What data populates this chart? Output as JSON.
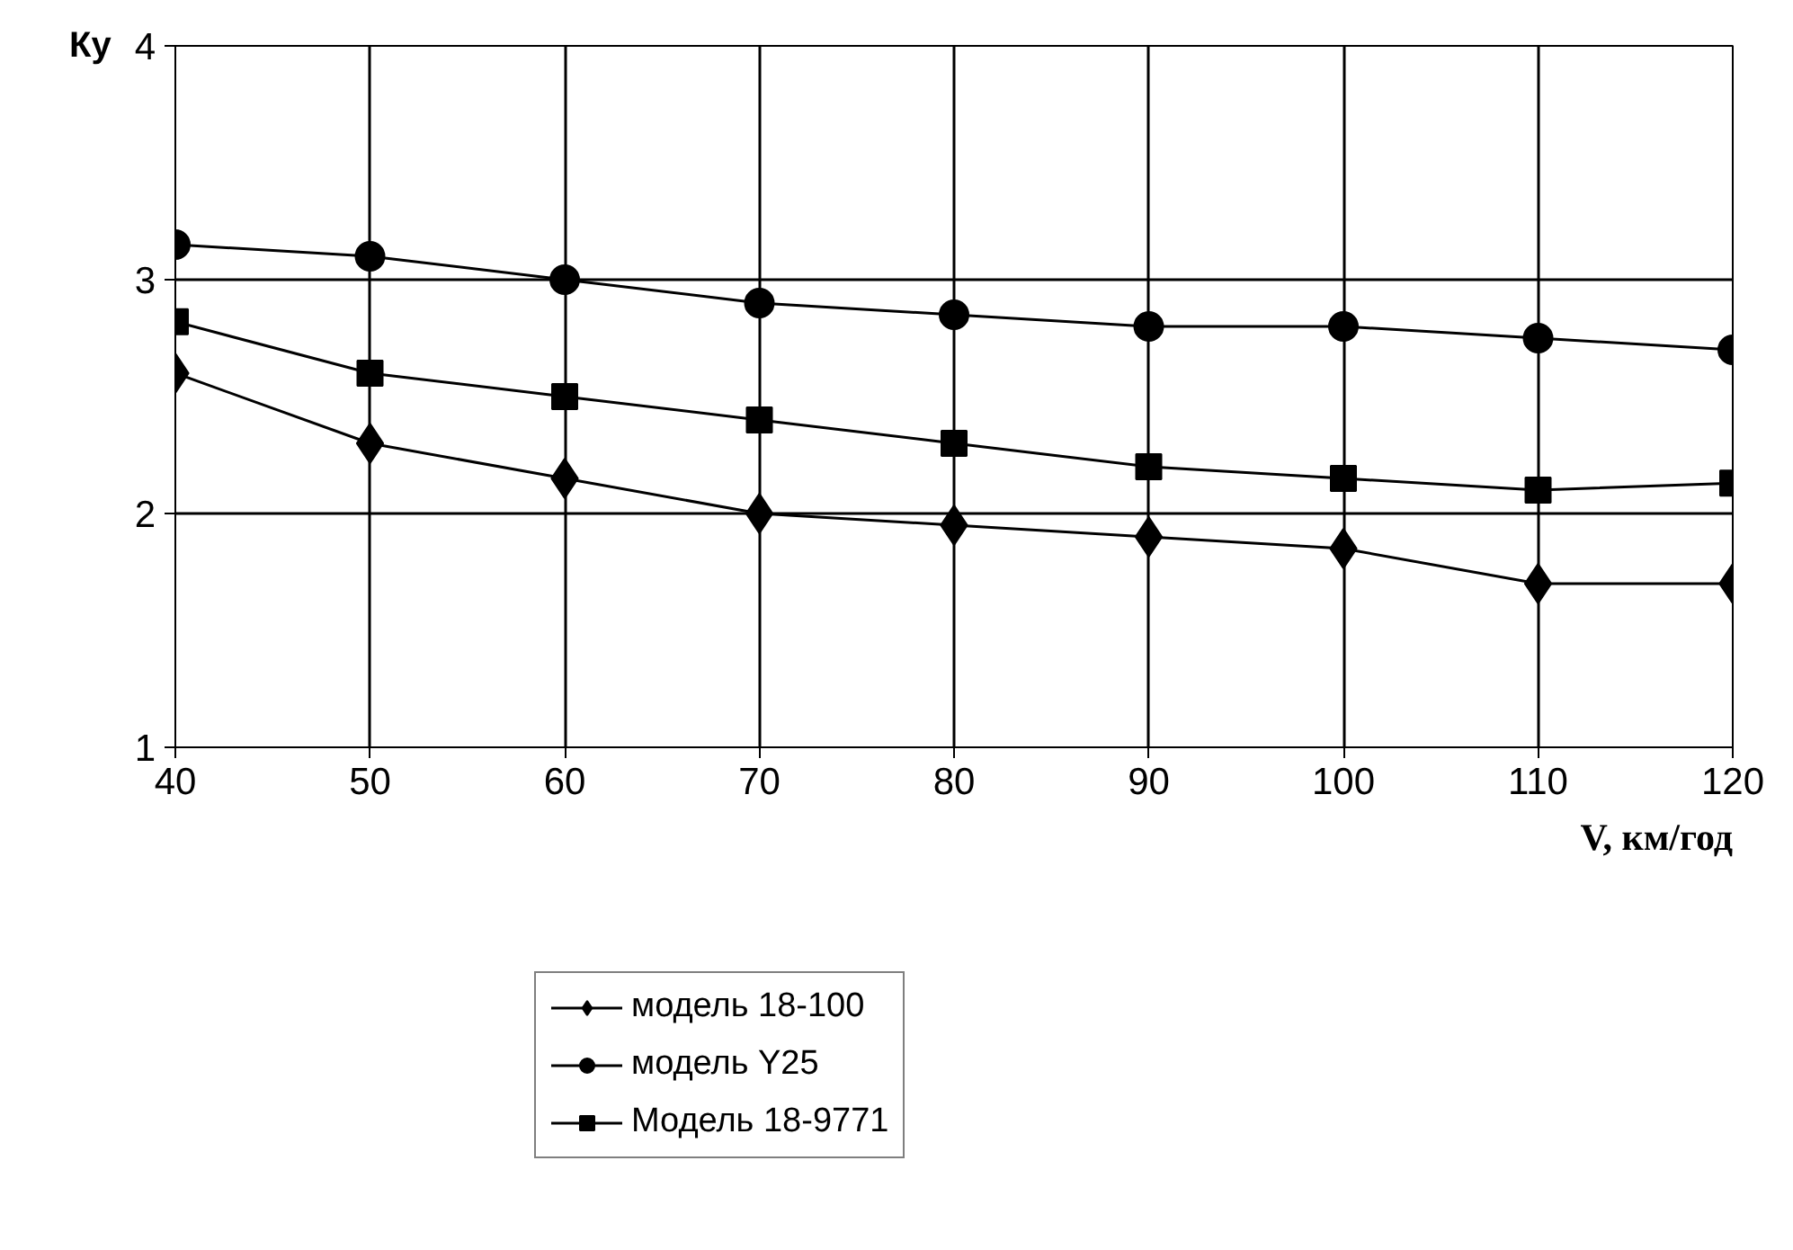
{
  "chart_data": {
    "type": "line",
    "xlabel": "V, км/год",
    "ylabel": "Ку",
    "x": [
      40,
      50,
      60,
      70,
      80,
      90,
      100,
      110,
      120
    ],
    "series": [
      {
        "name": "модель 18-100",
        "color": "#000000",
        "marker": "diamond",
        "values": [
          2.6,
          2.3,
          2.15,
          2.0,
          1.95,
          1.9,
          1.85,
          1.7,
          1.7
        ]
      },
      {
        "name": "модель Y25",
        "color": "#000000",
        "marker": "circle",
        "values": [
          3.15,
          3.1,
          3.0,
          2.9,
          2.85,
          2.8,
          2.8,
          2.75,
          2.7
        ]
      },
      {
        "name": "Модель 18-9771",
        "color": "#000000",
        "marker": "square",
        "values": [
          2.82,
          2.6,
          2.5,
          2.4,
          2.3,
          2.2,
          2.15,
          2.1,
          2.13
        ]
      }
    ],
    "xlim": [
      40,
      120
    ],
    "ylim": [
      1,
      4
    ],
    "xticks": [
      40,
      50,
      60,
      70,
      80,
      90,
      100,
      110,
      120
    ],
    "yticks": [
      1,
      2,
      3,
      4
    ],
    "grid": true,
    "legend": "bottom",
    "line_style": "solid"
  }
}
